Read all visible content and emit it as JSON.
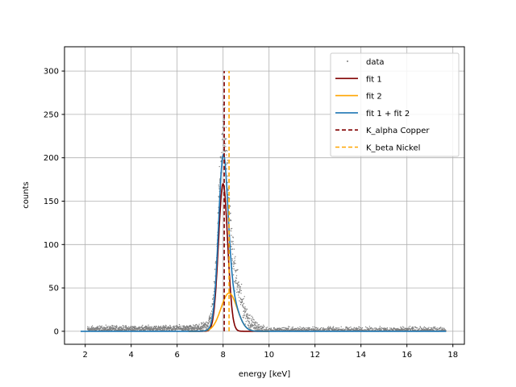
{
  "chart_data": {
    "type": "line",
    "title": "",
    "xlabel": "energy [keV]",
    "ylabel": "counts",
    "xlim": [
      1.1,
      18.5
    ],
    "ylim": [
      -15,
      328
    ],
    "xticks": [
      2,
      4,
      6,
      8,
      10,
      12,
      14,
      16,
      18
    ],
    "yticks": [
      0,
      50,
      100,
      150,
      200,
      250,
      300
    ],
    "grid": true,
    "legend_position": "top-right",
    "series": [
      {
        "name": "data",
        "kind": "scatter",
        "color": "#7f7f7f",
        "x_range": [
          2.1,
          17.7
        ]
      },
      {
        "name": "fit 1",
        "kind": "line",
        "color": "#800000",
        "peak_x": 8.0,
        "peak_y": 170,
        "sigma": 0.2
      },
      {
        "name": "fit 2",
        "kind": "line",
        "color": "#ffa500",
        "peak_x": 8.26,
        "peak_y": 44,
        "sigma": 0.35
      },
      {
        "name": "fit 1 + fit 2",
        "kind": "line",
        "color": "#1f77b4",
        "peak_x": 8.02,
        "peak_y": 211
      },
      {
        "name": "K_alpha Copper",
        "kind": "vline",
        "color": "#800000",
        "x": 8.05,
        "y_range": [
          0,
          300
        ]
      },
      {
        "name": "K_beta Nickel",
        "kind": "vline",
        "color": "#ffa500",
        "x": 8.26,
        "y_range": [
          0,
          300
        ]
      }
    ]
  }
}
